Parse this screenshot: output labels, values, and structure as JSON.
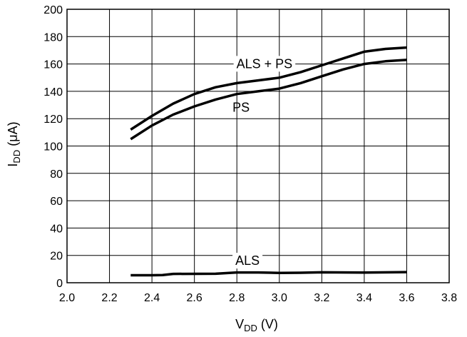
{
  "chart_data": {
    "type": "line",
    "xlabel": {
      "main": "V",
      "sub": "DD",
      "unit": " (V)"
    },
    "ylabel": {
      "main": "I",
      "sub": "DD",
      "unit": " (μA)"
    },
    "xlim": [
      2.0,
      3.8
    ],
    "ylim": [
      0,
      200
    ],
    "x_ticks": [
      2.0,
      2.2,
      2.4,
      2.6,
      2.8,
      3.0,
      3.2,
      3.4,
      3.6,
      3.8
    ],
    "x_tick_labels": [
      "2.0",
      "2.2",
      "2.4",
      "2.6",
      "2.8",
      "3.0",
      "3.2",
      "3.4",
      "3.6",
      "3.8"
    ],
    "y_ticks": [
      0,
      20,
      40,
      60,
      80,
      100,
      120,
      140,
      160,
      180,
      200
    ],
    "y_tick_labels": [
      "0",
      "20",
      "40",
      "60",
      "80",
      "100",
      "120",
      "140",
      "160",
      "180",
      "200"
    ],
    "grid": true,
    "series": [
      {
        "name": "ALS + PS",
        "x": [
          2.3,
          2.4,
          2.5,
          2.6,
          2.7,
          2.8,
          2.9,
          3.0,
          3.1,
          3.2,
          3.3,
          3.4,
          3.5,
          3.6
        ],
        "y": [
          112,
          122,
          131,
          138,
          143,
          146,
          148,
          150,
          154,
          159,
          164,
          169,
          171,
          172
        ]
      },
      {
        "name": "PS",
        "x": [
          2.3,
          2.4,
          2.5,
          2.6,
          2.7,
          2.8,
          2.9,
          3.0,
          3.1,
          3.2,
          3.3,
          3.4,
          3.5,
          3.6
        ],
        "y": [
          105,
          115,
          123,
          129,
          134,
          138,
          140,
          142,
          146,
          151,
          156,
          160,
          162,
          163
        ]
      },
      {
        "name": "ALS",
        "x": [
          2.3,
          2.4,
          2.45,
          2.5,
          2.7,
          2.8,
          2.9,
          3.0,
          3.1,
          3.2,
          3.4,
          3.6
        ],
        "y": [
          5.5,
          5.5,
          5.6,
          6.5,
          6.6,
          7.5,
          7.5,
          7.2,
          7.3,
          7.6,
          7.4,
          7.8
        ]
      }
    ]
  }
}
